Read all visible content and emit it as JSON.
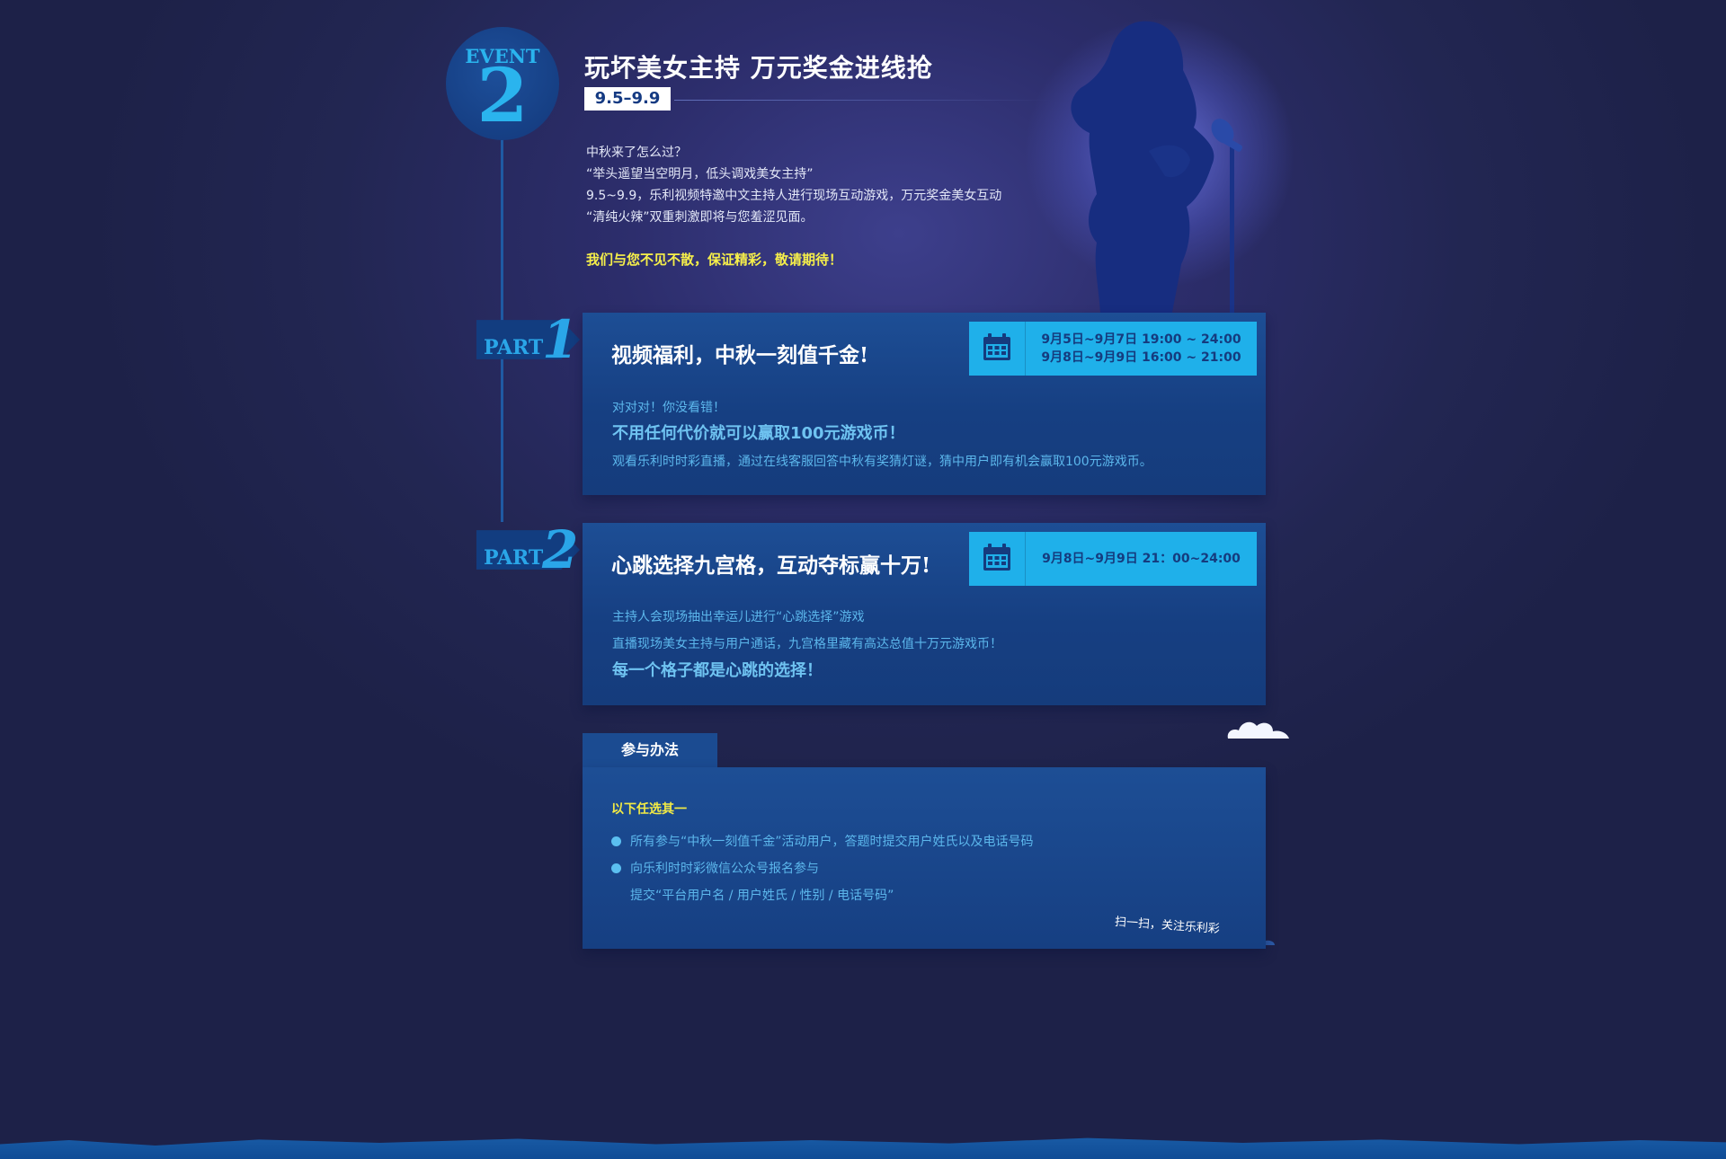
{
  "event": {
    "word": "EVENT",
    "number": "2",
    "title": "玩坏美女主持  万元奖金进线抢",
    "date_badge": "9.5–9.9",
    "intro_lines": [
      "中秋来了怎么过？",
      "“举头遥望当空明月，低头调戏美女主持”",
      "9.5~9.9，乐利视频特邀中文主持人进行现场互动游戏，万元奖金美女互动",
      "“清纯火辣”双重刺激即将与您羞涩见面。"
    ],
    "highlight": "我们与您不见不散，保证精彩，敬请期待！"
  },
  "parts": [
    {
      "label": "PART",
      "number": "1",
      "title": "视频福利，中秋一刻值千金!",
      "times": [
        "9月5日~9月7日 19:00 ~ 24:00",
        "9月8日~9月9日 16:00 ~ 21:00"
      ],
      "line1": "对对对！你没看错！",
      "strong": "不用任何代价就可以赢取100元游戏币！",
      "line2": "观看乐利时时彩直播，通过在线客服回答中秋有奖猜灯谜，猜中用户即有机会赢取100元游戏币。"
    },
    {
      "label": "PART",
      "number": "2",
      "title": "心跳选择九宫格，互动夺标赢十万!",
      "times": [
        "9月8日~9月9日 21：00~24:00"
      ],
      "line1": "主持人会现场抽出幸运儿进行“心跳选择”游戏",
      "line2": "直播现场美女主持与用户通话，九宫格里藏有高达总值十万元游戏币！",
      "strong": "每一个格子都是心跳的选择！"
    }
  ],
  "method": {
    "tab": "参与办法",
    "head": "以下任选其一",
    "items": [
      "所有参与“中秋一刻值千金”活动用户，答题时提交用户姓氏以及电话号码",
      "向乐利时时彩微信公众号报名参与"
    ],
    "sub_item": "提交“平台用户名 / 用户姓氏 / 性别 / 电话号码”",
    "scan": "扫一扫，关注乐利彩"
  },
  "icons": {
    "calendar": "calendar-icon",
    "singer": "singer-silhouette-icon",
    "cloud": "cloud-icon"
  },
  "colors": {
    "accent_cyan": "#1fb0ea",
    "highlight_yellow": "#f6ef4a",
    "card_blue": "#1d4e95",
    "text_blue": "#5cb7ec"
  }
}
